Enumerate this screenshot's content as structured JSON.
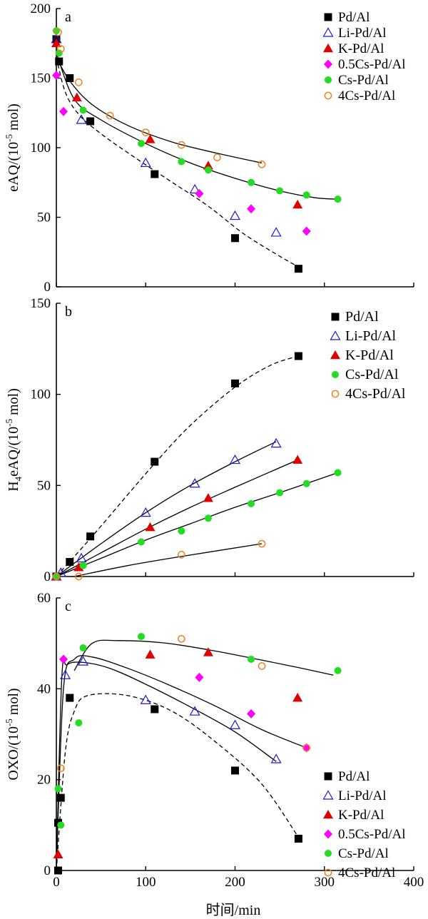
{
  "figure": {
    "xlabel": "时间/min",
    "x_ticks": [
      0,
      100,
      200,
      300,
      400
    ],
    "xlim": [
      0,
      400
    ]
  },
  "series_style": {
    "Pd/Al": {
      "marker": "square-filled",
      "color": "#000000"
    },
    "Li-Pd/Al": {
      "marker": "triangle-open",
      "color": "#1a1ad6"
    },
    "K-Pd/Al": {
      "marker": "triangle-filled",
      "color": "#e00000"
    },
    "0.5Cs-Pd/Al": {
      "marker": "diamond-filled",
      "color": "#ff00ff"
    },
    "Cs-Pd/Al": {
      "marker": "circle-filled",
      "color": "#22dd22"
    },
    "4Cs-Pd/Al": {
      "marker": "circle-open",
      "color": "#f08020"
    }
  },
  "chart_data": [
    {
      "type": "scatter",
      "panel_label": "a",
      "ylabel": "eAQ/(10-5 mol)",
      "ylim": [
        0,
        200
      ],
      "y_ticks": [
        0,
        50,
        100,
        150,
        200
      ],
      "legend": [
        "Pd/Al",
        "Li-Pd/Al",
        "K-Pd/Al",
        "0.5Cs-Pd/Al",
        "Cs-Pd/Al",
        "4Cs-Pd/Al"
      ],
      "legend_position": "top-right",
      "series": [
        {
          "name": "Pd/Al",
          "x": [
            0,
            3,
            15,
            38,
            110,
            200,
            271
          ],
          "y": [
            178,
            162,
            150,
            119,
            81,
            35,
            13
          ]
        },
        {
          "name": "Li-Pd/Al",
          "x": [
            0,
            28,
            100,
            155,
            200,
            246
          ],
          "y": [
            178,
            120,
            89,
            70,
            51,
            39
          ]
        },
        {
          "name": "K-Pd/Al",
          "x": [
            0,
            23,
            105,
            170,
            270
          ],
          "y": [
            175,
            136,
            106,
            87,
            59
          ]
        },
        {
          "name": "0.5Cs-Pd/Al",
          "x": [
            0,
            8,
            160,
            218,
            280
          ],
          "y": [
            152,
            126,
            67,
            56,
            40
          ]
        },
        {
          "name": "Cs-Pd/Al",
          "x": [
            0,
            3,
            30,
            95,
            140,
            170,
            218,
            250,
            280,
            315
          ],
          "y": [
            184,
            168,
            127,
            103,
            90,
            84,
            75,
            69,
            66,
            63
          ]
        },
        {
          "name": "4Cs-Pd/Al",
          "x": [
            2,
            5,
            25,
            60,
            100,
            140,
            180,
            230
          ],
          "y": [
            183,
            171,
            147,
            123,
            111,
            102,
            93,
            88
          ]
        }
      ],
      "fit_lines": [
        {
          "style": "dashed",
          "x": [
            0,
            10,
            25,
            50,
            90,
            130,
            170,
            210,
            250,
            272
          ],
          "y": [
            165,
            140,
            124,
            110,
            92,
            75,
            58,
            38,
            22,
            14
          ]
        },
        {
          "style": "solid",
          "x": [
            0,
            15,
            40,
            80,
            130,
            180,
            230
          ],
          "y": [
            165,
            148,
            131,
            116,
            104,
            96,
            89
          ]
        },
        {
          "style": "solid",
          "x": [
            0,
            20,
            50,
            100,
            150,
            200,
            250,
            290,
            315
          ],
          "y": [
            168,
            135,
            120,
            103,
            89,
            78,
            69,
            64,
            63
          ]
        }
      ]
    },
    {
      "type": "scatter",
      "panel_label": "b",
      "ylabel": "H4eAQ/(10-5 mol)",
      "ylim": [
        0,
        150
      ],
      "y_ticks": [
        0,
        50,
        100,
        150
      ],
      "legend": [
        "Pd/Al",
        "Li-Pd/Al",
        "K-Pd/Al",
        "Cs-Pd/Al",
        "4Cs-Pd/Al"
      ],
      "legend_position": "top-right",
      "series": [
        {
          "name": "Pd/Al",
          "x": [
            0,
            15,
            38,
            110,
            200,
            271
          ],
          "y": [
            0,
            8,
            22,
            63,
            106,
            121
          ]
        },
        {
          "name": "Li-Pd/Al",
          "x": [
            0,
            5,
            28,
            100,
            155,
            200,
            246
          ],
          "y": [
            0,
            2,
            10,
            35,
            51,
            64,
            73
          ]
        },
        {
          "name": "K-Pd/Al",
          "x": [
            0,
            25,
            105,
            170,
            270
          ],
          "y": [
            0,
            5,
            27,
            43,
            64
          ]
        },
        {
          "name": "Cs-Pd/Al",
          "x": [
            0,
            30,
            95,
            140,
            170,
            218,
            250,
            280,
            315
          ],
          "y": [
            0,
            6,
            19,
            25,
            32,
            40,
            46,
            51,
            57
          ]
        },
        {
          "name": "4Cs-Pd/Al",
          "x": [
            0,
            25,
            140,
            230
          ],
          "y": [
            0,
            0,
            12,
            18
          ]
        }
      ],
      "fit_lines": [
        {
          "style": "dashed",
          "x": [
            0,
            40,
            80,
            110,
            150,
            200,
            240,
            271
          ],
          "y": [
            0,
            22,
            45,
            62,
            83,
            104,
            116,
            121
          ]
        },
        {
          "style": "solid",
          "x": [
            0,
            50,
            100,
            150,
            200,
            246
          ],
          "y": [
            0,
            18,
            35,
            50,
            63,
            74
          ]
        },
        {
          "style": "solid",
          "x": [
            0,
            50,
            100,
            150,
            200,
            270
          ],
          "y": [
            0,
            13,
            26,
            38,
            49,
            64
          ]
        },
        {
          "style": "solid",
          "x": [
            0,
            50,
            100,
            150,
            200,
            250,
            315
          ],
          "y": [
            0,
            10,
            20,
            29,
            38,
            46,
            57
          ]
        },
        {
          "style": "solid",
          "x": [
            20,
            80,
            140,
            230
          ],
          "y": [
            0,
            6,
            11,
            18
          ]
        }
      ]
    },
    {
      "type": "scatter",
      "panel_label": "c",
      "ylabel": "OXO/(10-5 mol)",
      "ylim": [
        0,
        60
      ],
      "y_ticks": [
        0,
        20,
        40,
        60
      ],
      "legend": [
        "Pd/Al",
        "Li-Pd/Al",
        "K-Pd/Al",
        "0.5Cs-Pd/Al",
        "Cs-Pd/Al",
        "4Cs-Pd/Al"
      ],
      "legend_position": "bottom-right",
      "series": [
        {
          "name": "Pd/Al",
          "x": [
            2,
            2,
            5,
            15,
            110,
            200,
            271
          ],
          "y": [
            0,
            10.5,
            16,
            38,
            35.5,
            22,
            7
          ]
        },
        {
          "name": "Li-Pd/Al",
          "x": [
            10,
            30,
            100,
            155,
            200,
            246
          ],
          "y": [
            43,
            46,
            37.5,
            35,
            32,
            24.5
          ]
        },
        {
          "name": "K-Pd/Al",
          "x": [
            2,
            105,
            170,
            270
          ],
          "y": [
            3.5,
            47.5,
            48,
            38
          ]
        },
        {
          "name": "0.5Cs-Pd/Al",
          "x": [
            8,
            160,
            218,
            280
          ],
          "y": [
            46.5,
            42.5,
            34.5,
            27
          ]
        },
        {
          "name": "Cs-Pd/Al",
          "x": [
            2,
            5,
            25,
            30,
            95,
            218,
            315
          ],
          "y": [
            18,
            10,
            32.5,
            49,
            51.5,
            46.5,
            44
          ]
        },
        {
          "name": "4Cs-Pd/Al",
          "x": [
            5,
            140,
            230,
            280
          ],
          "y": [
            22.5,
            51,
            45,
            27
          ]
        }
      ],
      "fit_lines": [
        {
          "style": "dashed",
          "x": [
            0,
            10,
            20,
            35,
            80,
            130,
            180,
            230,
            272
          ],
          "y": [
            0,
            26,
            35,
            38.5,
            38.5,
            35,
            28,
            19,
            7
          ]
        },
        {
          "style": "solid",
          "x": [
            0,
            6,
            12,
            30,
            60,
            100,
            150,
            200,
            246
          ],
          "y": [
            0,
            42,
            45.3,
            45.8,
            44.5,
            41,
            36,
            30.5,
            24
          ]
        },
        {
          "style": "solid",
          "x": [
            0,
            8,
            20,
            40,
            80,
            130,
            180,
            230,
            280
          ],
          "y": [
            0,
            40,
            46.5,
            47,
            44.5,
            40.5,
            36,
            31,
            27
          ]
        },
        {
          "style": "solid",
          "x": [
            20,
            40,
            70,
            120,
            170,
            220,
            270,
            310
          ],
          "y": [
            44,
            50,
            50.6,
            50.1,
            48.6,
            46.7,
            44.7,
            43
          ]
        }
      ]
    }
  ]
}
